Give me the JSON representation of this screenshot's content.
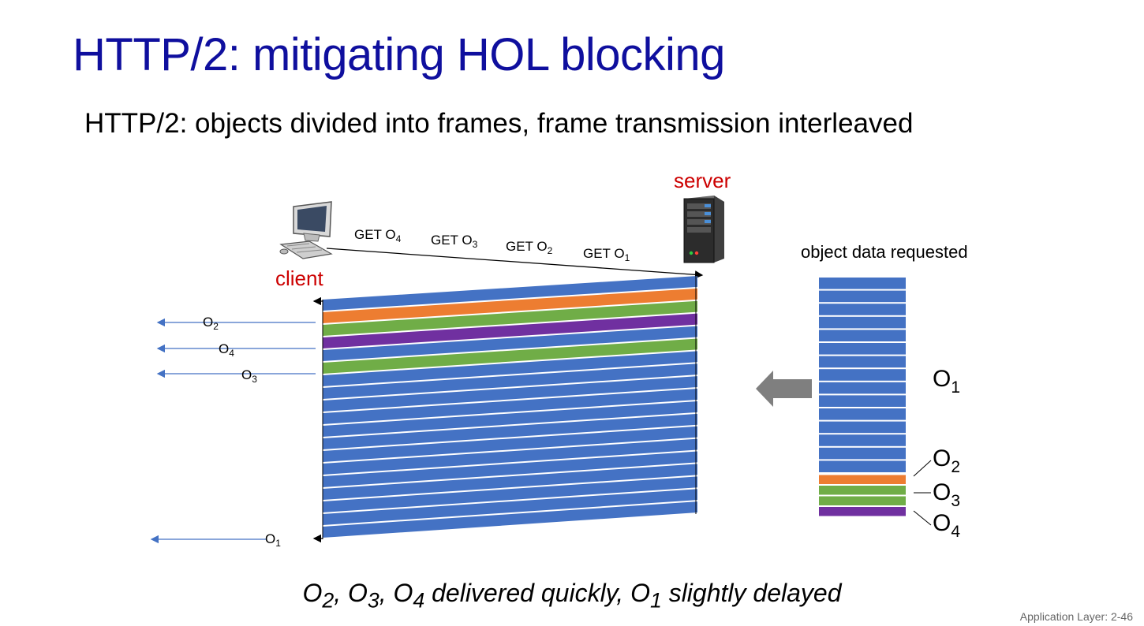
{
  "slide": {
    "title": "HTTP/2: mitigating HOL blocking",
    "subtitle": "HTTP/2: objects divided into frames, frame transmission interleaved",
    "footer": "Application Layer: 2-46"
  },
  "caption": {
    "parts": [
      {
        "base": "O",
        "sub": "2",
        "after": ", "
      },
      {
        "base": "O",
        "sub": "3",
        "after": ", "
      },
      {
        "base": "O",
        "sub": "4",
        "after": " delivered quickly, "
      },
      {
        "base": "O",
        "sub": "1",
        "after": " slightly delayed"
      }
    ]
  },
  "labels": {
    "server": "server",
    "client": "client",
    "object_data_requested": "object data requested"
  },
  "requests": [
    {
      "text": "GET O",
      "sub": "4"
    },
    {
      "text": "GET O",
      "sub": "3"
    },
    {
      "text": "GET O",
      "sub": "2"
    },
    {
      "text": "GET O",
      "sub": "1"
    }
  ],
  "deliveries": [
    {
      "text": "O",
      "sub": "2"
    },
    {
      "text": "O",
      "sub": "4"
    },
    {
      "text": "O",
      "sub": "3"
    },
    {
      "text": "O",
      "sub": "1"
    }
  ],
  "objects": [
    {
      "text": "O",
      "sub": "1",
      "frames": 15,
      "color": "#4472c4"
    },
    {
      "text": "O",
      "sub": "2",
      "frames": 1,
      "color": "#ed7d31"
    },
    {
      "text": "O",
      "sub": "3",
      "frames": 2,
      "color": "#70ad47"
    },
    {
      "text": "O",
      "sub": "4",
      "frames": 1,
      "color": "#7030a0"
    }
  ],
  "transmission_order": [
    "O1",
    "O2",
    "O3",
    "O4",
    "O1",
    "O3",
    "O1",
    "O1",
    "O1",
    "O1",
    "O1",
    "O1",
    "O1",
    "O1",
    "O1",
    "O1",
    "O1",
    "O1",
    "O1"
  ],
  "colors": {
    "title": "#0f0f9e",
    "label_red": "#cc0000",
    "O1": "#4472c4",
    "O2": "#ed7d31",
    "O3": "#70ad47",
    "O4": "#7030a0",
    "arrow_blue": "#4472c4",
    "big_arrow": "#808080"
  },
  "icons": {
    "client": "desktop-computer-icon",
    "server": "server-tower-icon"
  }
}
